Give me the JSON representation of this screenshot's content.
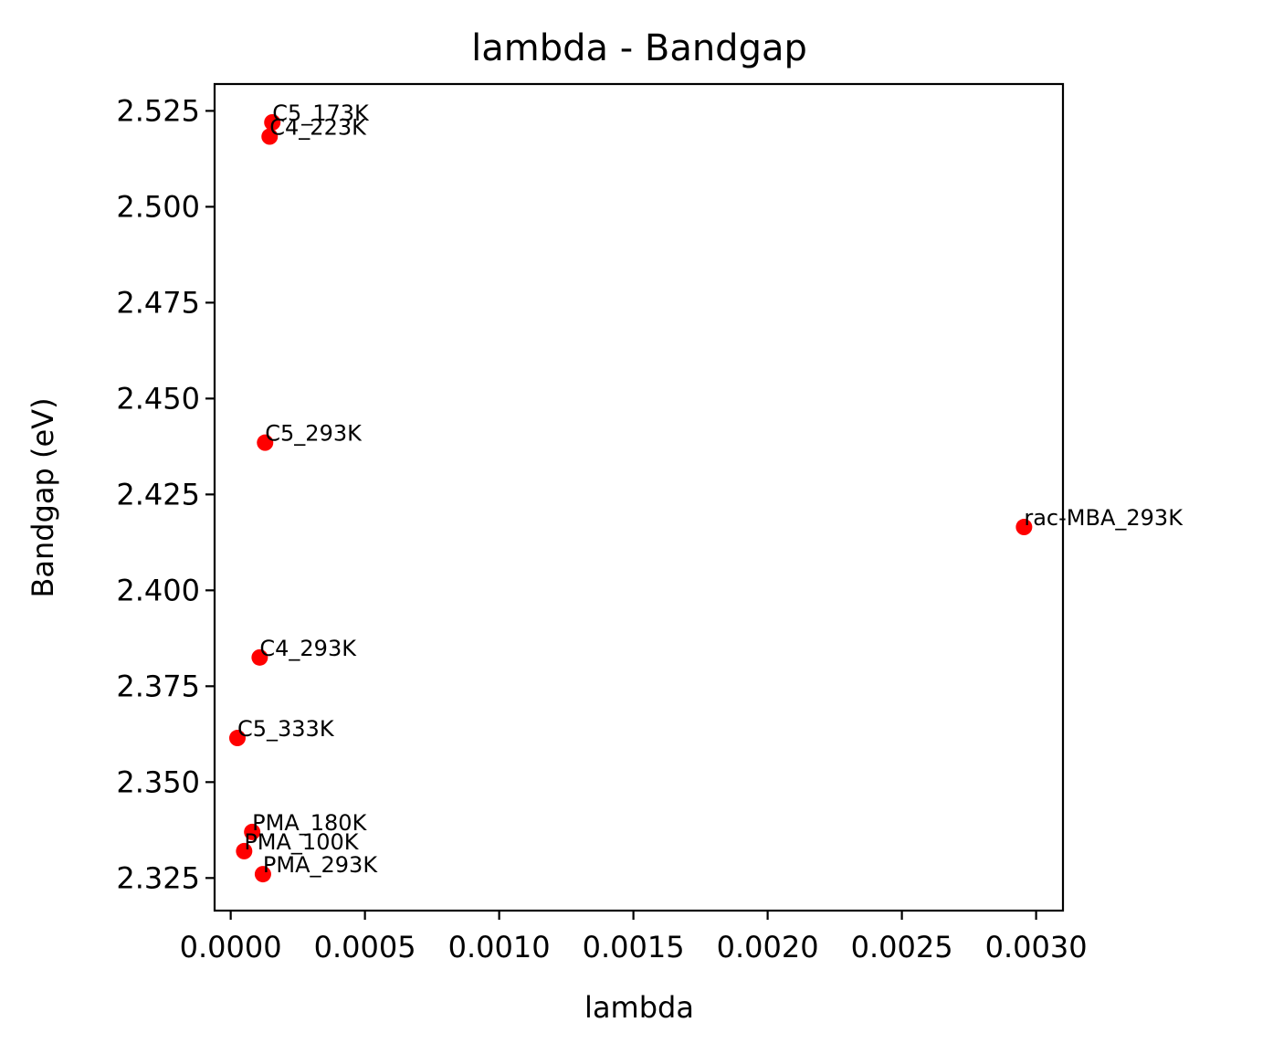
{
  "chart_data": {
    "type": "scatter",
    "title": "lambda - Bandgap",
    "xlabel": "lambda",
    "ylabel": "Bandgap (eV)",
    "xlim": [
      -6e-05,
      0.0031
    ],
    "ylim": [
      2.3165,
      2.532
    ],
    "x_ticks": [
      0.0,
      0.0005,
      0.001,
      0.0015,
      0.002,
      0.0025,
      0.003
    ],
    "x_tick_labels": [
      "0.0000",
      "0.0005",
      "0.0010",
      "0.0015",
      "0.0020",
      "0.0025",
      "0.0030"
    ],
    "y_ticks": [
      2.325,
      2.35,
      2.375,
      2.4,
      2.425,
      2.45,
      2.475,
      2.5,
      2.525
    ],
    "y_tick_labels": [
      "2.325",
      "2.350",
      "2.375",
      "2.400",
      "2.425",
      "2.450",
      "2.475",
      "2.500",
      "2.525"
    ],
    "grid": false,
    "marker_color": "#ff0000",
    "points": [
      {
        "label": "C5_173K",
        "x": 0.000155,
        "y": 2.522
      },
      {
        "label": "C4_223K",
        "x": 0.000145,
        "y": 2.5183
      },
      {
        "label": "C5_293K",
        "x": 0.000128,
        "y": 2.4385
      },
      {
        "label": "rac-MBA_293K",
        "x": 0.002955,
        "y": 2.4165
      },
      {
        "label": "C4_293K",
        "x": 0.000108,
        "y": 2.3825
      },
      {
        "label": "C5_333K",
        "x": 2.5e-05,
        "y": 2.3615
      },
      {
        "label": "PMA_180K",
        "x": 8e-05,
        "y": 2.337
      },
      {
        "label": "PMA_100K",
        "x": 5e-05,
        "y": 2.332
      },
      {
        "label": "PMA_293K",
        "x": 0.00012,
        "y": 2.326
      }
    ]
  }
}
